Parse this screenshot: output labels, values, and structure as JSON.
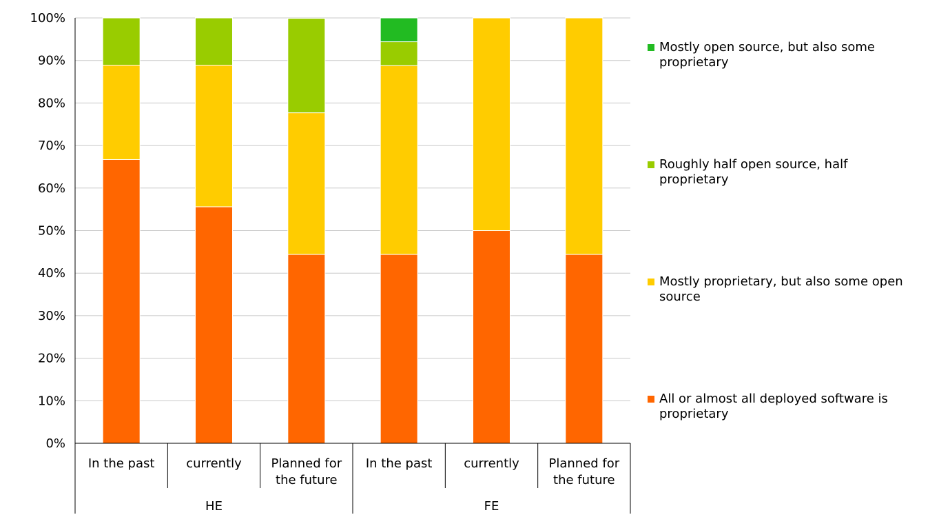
{
  "chart_data": {
    "type": "bar",
    "stacked": true,
    "percent": true,
    "title": "",
    "xlabel": "",
    "ylabel": "",
    "ylim": [
      0,
      100
    ],
    "yticks": [
      "0%",
      "10%",
      "20%",
      "30%",
      "40%",
      "50%",
      "60%",
      "70%",
      "80%",
      "90%",
      "100%"
    ],
    "grid": true,
    "legend_position": "right",
    "groups": [
      {
        "label": "HE",
        "categories": [
          "In the past",
          "currently",
          "Planned for the future"
        ]
      },
      {
        "label": "FE",
        "categories": [
          "In the past",
          "currently",
          "Planned for the future"
        ]
      }
    ],
    "categories": [
      "In the past",
      "currently",
      "Planned for the future",
      "In the past",
      "currently",
      "Planned for the future"
    ],
    "category_lines": [
      [
        "In the past"
      ],
      [
        "currently"
      ],
      [
        "Planned for",
        "the future"
      ],
      [
        "In the past"
      ],
      [
        "currently"
      ],
      [
        "Planned for",
        "the future"
      ]
    ],
    "series": [
      {
        "name": "All or almost all deployed software is proprietary",
        "color": "#ff6600",
        "values": [
          66.7,
          55.6,
          44.4,
          44.4,
          50.0,
          44.4
        ]
      },
      {
        "name": "Mostly proprietary, but also some open source",
        "color": "#ffcc00",
        "values": [
          22.2,
          33.3,
          33.3,
          44.4,
          50.0,
          55.6
        ]
      },
      {
        "name": "Roughly half open source, half proprietary",
        "color": "#99cc00",
        "values": [
          11.1,
          11.1,
          22.2,
          5.6,
          0,
          0
        ]
      },
      {
        "name": "Mostly open source, but also some proprietary",
        "color": "#22bb22",
        "values": [
          0,
          0,
          0,
          5.6,
          0,
          0
        ]
      }
    ],
    "legend": [
      {
        "lines": [
          "Mostly open source, but also some",
          "proprietary"
        ],
        "color": "#22bb22"
      },
      {
        "lines": [
          "Roughly half open source, half",
          "proprietary"
        ],
        "color": "#99cc00"
      },
      {
        "lines": [
          "Mostly proprietary, but also some open",
          "source"
        ],
        "color": "#ffcc00"
      },
      {
        "lines": [
          "All or almost all deployed software is",
          "proprietary"
        ],
        "color": "#ff6600"
      }
    ]
  }
}
